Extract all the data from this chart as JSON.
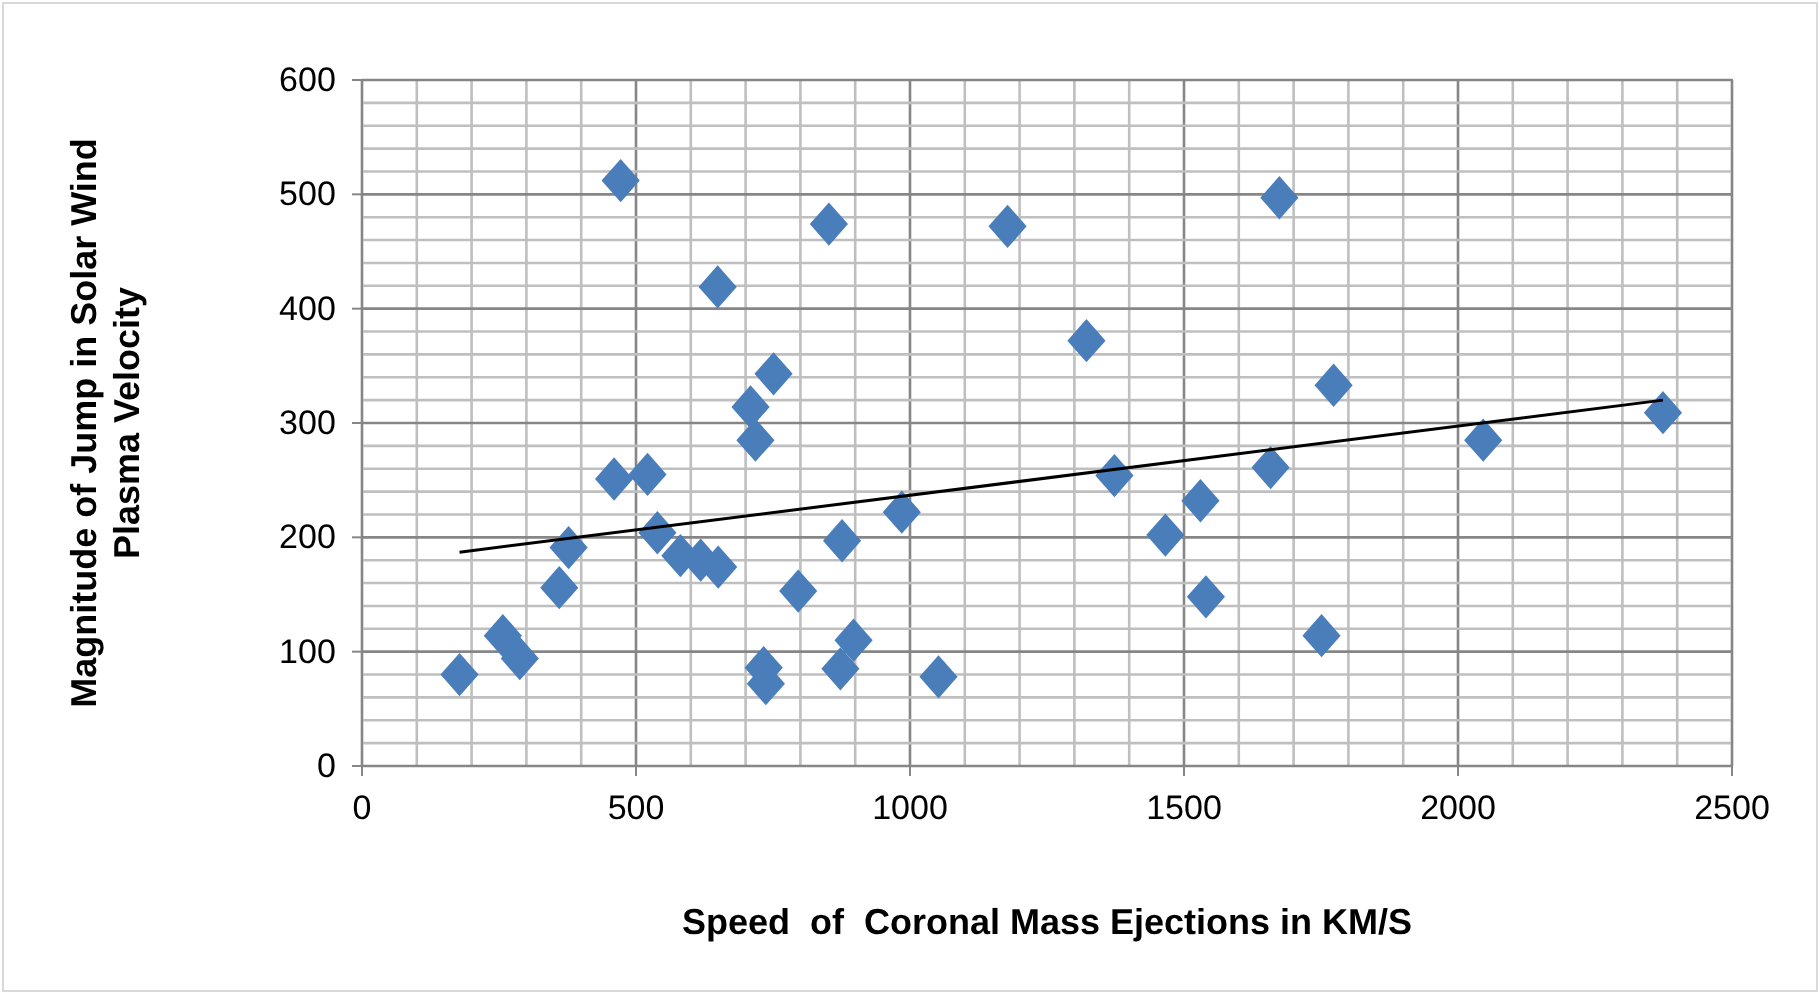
{
  "chart_data": {
    "type": "scatter",
    "xlabel": "Speed  of  Coronal Mass Ejections in KM/S",
    "ylabel": "Magnitude of Jump in Solar Wind\nPlasma Velocity",
    "xlim": [
      0,
      2500
    ],
    "ylim": [
      0,
      600
    ],
    "xticks": [
      0,
      {
        "value": 100,
        "label": null
      },
      {
        "value": 200,
        "label": null
      },
      {
        "value": 300,
        "label": null
      },
      {
        "value": 400,
        "label": null
      },
      500,
      {
        "value": 600,
        "label": null
      },
      {
        "value": 700,
        "label": null
      },
      {
        "value": 800,
        "label": null
      },
      {
        "value": 900,
        "label": null
      },
      1000,
      {
        "value": 1100,
        "label": null
      },
      {
        "value": 1200,
        "label": null
      },
      {
        "value": 1300,
        "label": null
      },
      {
        "value": 1400,
        "label": null
      },
      1500,
      {
        "value": 1600,
        "label": null
      },
      {
        "value": 1700,
        "label": null
      },
      {
        "value": 1800,
        "label": null
      },
      {
        "value": 1900,
        "label": null
      },
      2000,
      {
        "value": 2100,
        "label": null
      },
      {
        "value": 2200,
        "label": null
      },
      {
        "value": 2300,
        "label": null
      },
      {
        "value": 2400,
        "label": null
      },
      2500
    ],
    "yticks": [
      0,
      {
        "value": 20,
        "label": null
      },
      {
        "value": 40,
        "label": null
      },
      {
        "value": 60,
        "label": null
      },
      {
        "value": 80,
        "label": null
      },
      100,
      {
        "value": 120,
        "label": null
      },
      {
        "value": 140,
        "label": null
      },
      {
        "value": 160,
        "label": null
      },
      {
        "value": 180,
        "label": null
      },
      200,
      {
        "value": 220,
        "label": null
      },
      {
        "value": 240,
        "label": null
      },
      {
        "value": 260,
        "label": null
      },
      {
        "value": 280,
        "label": null
      },
      300,
      {
        "value": 320,
        "label": null
      },
      {
        "value": 340,
        "label": null
      },
      {
        "value": 360,
        "label": null
      },
      {
        "value": 380,
        "label": null
      },
      400,
      {
        "value": 420,
        "label": null
      },
      {
        "value": 440,
        "label": null
      },
      {
        "value": 460,
        "label": null
      },
      {
        "value": 480,
        "label": null
      },
      500,
      {
        "value": 520,
        "label": null
      },
      {
        "value": 540,
        "label": null
      },
      {
        "value": 560,
        "label": null
      },
      {
        "value": 580,
        "label": null
      },
      600
    ],
    "grid": true,
    "series": [
      {
        "color": "#4a7ebb",
        "marker": "diamond",
        "x": [
          178,
          257,
          288,
          360,
          377,
          460,
          472,
          521,
          539,
          581,
          618,
          650,
          649,
          709,
          718,
          751,
          733,
          737,
          796,
          852,
          876,
          873,
          897,
          985,
          1052,
          1178,
          1322,
          1373,
          1466,
          1530,
          1540,
          1674,
          1658,
          1773,
          1751,
          2046,
          2374
        ],
        "values": [
          80,
          114,
          94,
          156,
          191,
          251,
          512,
          255,
          204,
          184,
          180,
          174,
          419,
          314,
          285,
          343,
          86,
          72,
          153,
          474,
          197,
          85,
          110,
          222,
          78,
          472,
          372,
          254,
          202,
          232,
          148,
          497,
          261,
          333,
          114,
          285,
          309
        ]
      },
      {
        "type": "line",
        "color": "#000000",
        "marker": "none",
        "x": [
          178,
          2374
        ],
        "values": [
          187,
          320
        ]
      }
    ]
  }
}
